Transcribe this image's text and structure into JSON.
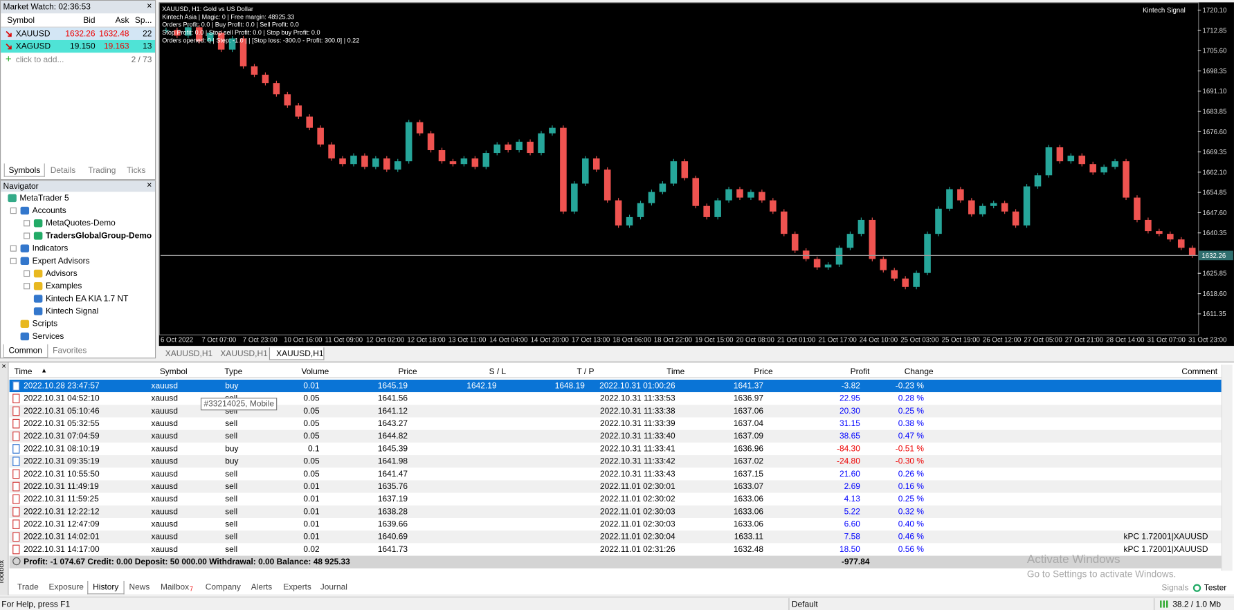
{
  "market_watch": {
    "title": "Market Watch: 02:36:53",
    "columns": [
      "Symbol",
      "Bid",
      "Ask",
      "Sp..."
    ],
    "rows": [
      [
        "XAUUSD",
        "1632.26",
        "1632.48",
        "22"
      ],
      [
        "XAGUSD",
        "19.150",
        "19.163",
        "13"
      ]
    ],
    "add": "click to add...",
    "count": "2 / 73",
    "tabs": [
      "Symbols",
      "Details",
      "Trading",
      "Ticks"
    ]
  },
  "navigator": {
    "title": "Navigator",
    "items": [
      "MetaTrader 5",
      "Accounts",
      "MetaQuotes-Demo",
      "TradersGlobalGroup-Demo",
      "Indicators",
      "Expert Advisors",
      "Advisors",
      "Examples",
      "Kintech EA KIA 1.7 NT",
      "Kintech Signal",
      "Scripts",
      "Services"
    ],
    "tabs": [
      "Common",
      "Favorites"
    ]
  },
  "chart_data": {
    "type": "candlestick",
    "info": [
      "XAUUSD, H1:  Gold vs US Dollar",
      "Kintech Asia | Magic: 0 | Free margin: 48925.33",
      "Orders Profit: 0.0 | Buy Profit: 0.0 | Sell Profit: 0.0",
      "Stop Profit: 0.0 | Stop sell Profit: 0.0 | Stop buy Profit: 0.0",
      "Orders opened: 0 | Step: -1.0 |  | [Stop loss: -300.0 - Profit: 300.0] | 0.22"
    ],
    "indicator": "Kintech Signal",
    "series": [
      {
        "name": "XAUUSD",
        "values": [
          1713,
          1711,
          1714,
          1709,
          1712,
          1706,
          1710,
          1700,
          1697,
          1694,
          1690,
          1686,
          1682,
          1678,
          1672,
          1667,
          1665,
          1668,
          1664,
          1667,
          1663,
          1666,
          1680,
          1676,
          1670,
          1666,
          1665,
          1667,
          1664,
          1669,
          1672,
          1670,
          1673,
          1669,
          1676,
          1678,
          1648,
          1658,
          1667,
          1663,
          1652,
          1643,
          1646,
          1651,
          1655,
          1658,
          1666,
          1660,
          1650,
          1646,
          1652,
          1656,
          1653,
          1655,
          1652,
          1648,
          1640,
          1634,
          1631,
          1628,
          1629,
          1635,
          1640,
          1645,
          1631,
          1627,
          1624,
          1621,
          1626,
          1640,
          1649,
          1656,
          1652,
          1647,
          1650,
          1651,
          1648,
          1643,
          1657,
          1661,
          1671,
          1666,
          1668,
          1665,
          1662,
          1664,
          1666,
          1653,
          1645,
          1641,
          1640,
          1638,
          1635,
          1632.26
        ]
      }
    ],
    "colors": {
      "up": "#26a69a",
      "down": "#ef5350"
    },
    "ylim": [
      1604.1,
      1722.35
    ],
    "yticks": [
      {
        "value": 1720.1,
        "label": "1720.10"
      },
      1712.85,
      {
        "value": 1705.6,
        "label": "1705.60"
      },
      1698.35,
      {
        "value": 1691.1,
        "label": "1691.10"
      },
      1683.85,
      {
        "value": 1676.6,
        "label": "1676.60"
      },
      1669.35,
      {
        "value": 1662.1,
        "label": "1662.10"
      },
      1654.85,
      {
        "value": 1647.6,
        "label": "1647.60"
      },
      1640.35,
      {
        "value": 1625.85,
        "label": "1625.85"
      },
      {
        "value": 1618.6,
        "label": "1618.60"
      },
      1611.35
    ],
    "bid": 1632.26,
    "x_labels": [
      "6 Oct 2022",
      "7 Oct 07:00",
      "7 Oct 23:00",
      "10 Oct 16:00",
      "11 Oct 09:00",
      "12 Oct 02:00",
      "12 Oct 18:00",
      "13 Oct 11:00",
      "14 Oct 04:00",
      "14 Oct 20:00",
      "17 Oct 13:00",
      "18 Oct 06:00",
      "18 Oct 22:00",
      "19 Oct 15:00",
      "20 Oct 08:00",
      "21 Oct 01:00",
      "21 Oct 17:00",
      "24 Oct 10:00",
      "25 Oct 03:00",
      "25 Oct 19:00",
      "26 Oct 12:00",
      "27 Oct 05:00",
      "27 Oct 21:00",
      "28 Oct 14:00",
      "31 Oct 07:00",
      "31 Oct 23:00"
    ],
    "tabs": [
      "XAUUSD,H1",
      "XAUUSD,H1",
      "XAUUSD,H1"
    ]
  },
  "toolbox": {
    "label": "Toolbox",
    "columns": [
      "Time",
      "Symbol",
      "Type",
      "Volume",
      "Price",
      "S / L",
      "T / P",
      "Time",
      "Price",
      "Profit",
      "Change",
      "Comment"
    ],
    "rows": [
      [
        "2022.10.28 23:47:57",
        "xauusd",
        "buy",
        "0.01",
        "1645.19",
        "1642.19",
        "1648.19",
        "2022.10.31 01:00:26",
        "1641.37",
        "-3.82",
        "-0.23 %",
        ""
      ],
      [
        "2022.10.31 04:52:10",
        "xauusd",
        "sell",
        "0.05",
        "1641.56",
        "",
        "",
        "2022.10.31 11:33:53",
        "1636.97",
        "22.95",
        "0.28 %",
        ""
      ],
      [
        "2022.10.31 05:10:46",
        "xauusd",
        "sell",
        "0.05",
        "1641.12",
        "",
        "",
        "2022.10.31 11:33:38",
        "1637.06",
        "20.30",
        "0.25 %",
        ""
      ],
      [
        "2022.10.31 05:32:55",
        "xauusd",
        "sell",
        "0.05",
        "1643.27",
        "",
        "",
        "2022.10.31 11:33:39",
        "1637.04",
        "31.15",
        "0.38 %",
        ""
      ],
      [
        "2022.10.31 07:04:59",
        "xauusd",
        "sell",
        "0.05",
        "1644.82",
        "",
        "",
        "2022.10.31 11:33:40",
        "1637.09",
        "38.65",
        "0.47 %",
        ""
      ],
      [
        "2022.10.31 08:10:19",
        "xauusd",
        "buy",
        "0.1",
        "1645.39",
        "",
        "",
        "2022.10.31 11:33:41",
        "1636.96",
        "-84.30",
        "-0.51 %",
        ""
      ],
      [
        "2022.10.31 09:35:19",
        "xauusd",
        "buy",
        "0.05",
        "1641.98",
        "",
        "",
        "2022.10.31 11:33:42",
        "1637.02",
        "-24.80",
        "-0.30 %",
        ""
      ],
      [
        "2022.10.31 10:55:50",
        "xauusd",
        "sell",
        "0.05",
        "1641.47",
        "",
        "",
        "2022.10.31 11:33:43",
        "1637.15",
        "21.60",
        "0.26 %",
        ""
      ],
      [
        "2022.10.31 11:49:19",
        "xauusd",
        "sell",
        "0.01",
        "1635.76",
        "",
        "",
        "2022.11.01 02:30:01",
        "1633.07",
        "2.69",
        "0.16 %",
        ""
      ],
      [
        "2022.10.31 11:59:25",
        "xauusd",
        "sell",
        "0.01",
        "1637.19",
        "",
        "",
        "2022.11.01 02:30:02",
        "1633.06",
        "4.13",
        "0.25 %",
        ""
      ],
      [
        "2022.10.31 12:22:12",
        "xauusd",
        "sell",
        "0.01",
        "1638.28",
        "",
        "",
        "2022.11.01 02:30:03",
        "1633.06",
        "5.22",
        "0.32 %",
        ""
      ],
      [
        "2022.10.31 12:47:09",
        "xauusd",
        "sell",
        "0.01",
        "1639.66",
        "",
        "",
        "2022.11.01 02:30:03",
        "1633.06",
        "6.60",
        "0.40 %",
        ""
      ],
      [
        "2022.10.31 14:02:01",
        "xauusd",
        "sell",
        "0.01",
        "1640.69",
        "",
        "",
        "2022.11.01 02:30:04",
        "1633.11",
        "7.58",
        "0.46 %",
        "kPC 1.72001|XAUUSD"
      ],
      [
        "2022.10.31 14:17:00",
        "xauusd",
        "sell",
        "0.02",
        "1641.73",
        "",
        "",
        "2022.11.01 02:31:26",
        "1632.48",
        "18.50",
        "0.56 %",
        "kPC 1.72001|XAUUSD"
      ]
    ],
    "summary": "Profit: -1 074.67  Credit: 0.00  Deposit: 50 000.00  Withdrawal: 0.00  Balance: 48 925.33",
    "summary_profit": "-977.84",
    "tooltip": "#33214025, Mobile",
    "tabs": [
      "Trade",
      "Exposure",
      "History",
      "News",
      "Mailbox",
      "Company",
      "Alerts",
      "Experts",
      "Journal"
    ],
    "mailbox_badge": "7",
    "signals": "Signals",
    "tester": "Tester"
  },
  "watermark": {
    "title": "Activate Windows",
    "text": "Go to Settings to activate Windows."
  },
  "status_bar": {
    "help": "For Help, press F1",
    "profile": "Default",
    "memory": "38.2 / 1.0 Mb"
  }
}
